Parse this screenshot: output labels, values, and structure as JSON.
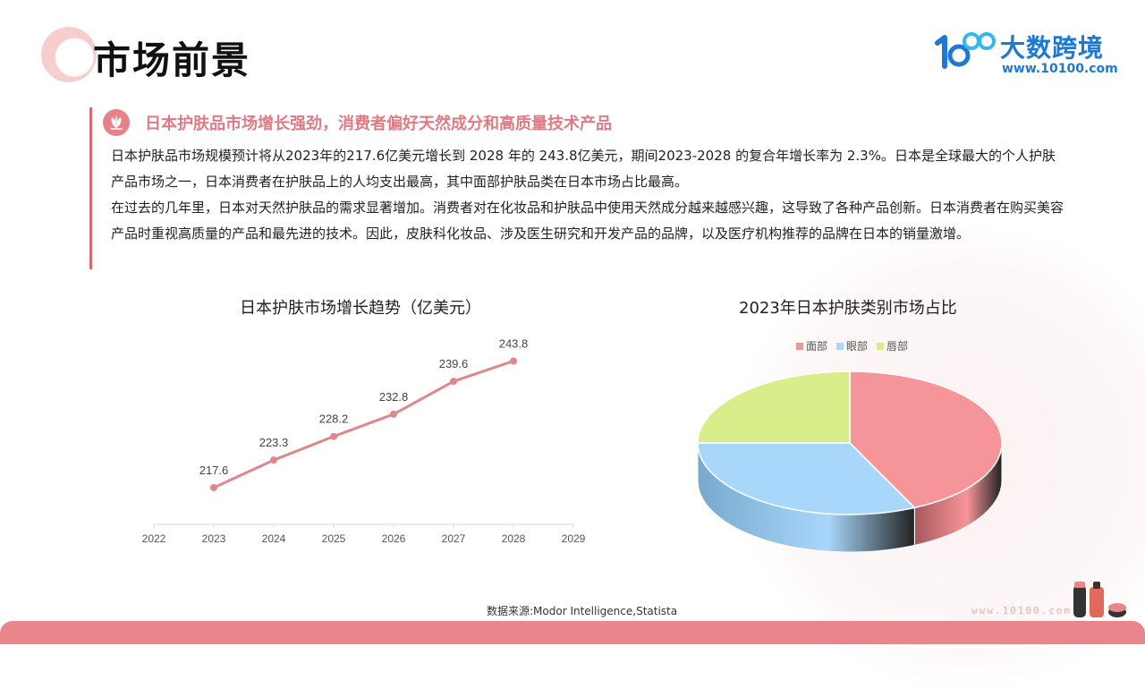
{
  "header": {
    "title": "市场前景",
    "logo": {
      "name": "大数跨境",
      "url": "www.10100.com",
      "mark": "100"
    }
  },
  "intro": {
    "heading": "日本护肤品市场增长强劲，消费者偏好天然成分和高质量技术产品",
    "paragraphs": [
      "日本护肤品市场规模预计将从2023年的217.6亿美元增长到 2028 年的 243.8亿美元，期间2023-2028 的复合年增长率为 2.3%。日本是全球最大的个人护肤产品市场之一，日本消费者在护肤品上的人均支出最高，其中面部护肤品类在日本市场占比最高。",
      "在过去的几年里，日本对天然护肤品的需求显著增加。消费者对在化妆品和护肤品中使用天然成分越来越感兴趣，这导致了各种产品创新。日本消费者在购买美容产品时重视高质量的产品和最先进的技术。因此，皮肤科化妆品、涉及医生研究和开发产品的品牌，以及医疗机构推荐的品牌在日本的销量激增。"
    ],
    "icon": "lotus-icon"
  },
  "colors": {
    "accent": "#e07b84",
    "line": "#e0868d",
    "pie_face": "#f69599",
    "pie_eye": "#a8d7fb",
    "pie_lip": "#d9ee8a"
  },
  "chart_data": [
    {
      "type": "line",
      "title": "日本护肤市场增长趋势（亿美元）",
      "x": [
        "2022",
        "2023",
        "2024",
        "2025",
        "2026",
        "2027",
        "2028",
        "2029"
      ],
      "series": [
        {
          "x": [
            "2023",
            "2024",
            "2025",
            "2026",
            "2027",
            "2028"
          ],
          "values": [
            217.6,
            223.3,
            228.2,
            232.8,
            239.6,
            243.8
          ]
        }
      ],
      "data_labels": [
        "217.6",
        "223.3",
        "228.2",
        "232.8",
        "239.6",
        "243.8"
      ],
      "grid": false
    },
    {
      "type": "pie",
      "title": "2023年日本护肤类别市场占比",
      "labels": [
        "面部",
        "眼部",
        "唇部"
      ],
      "values": [
        43,
        32,
        25
      ],
      "style": "3d",
      "legend": "top"
    }
  ],
  "footer": {
    "source": "数据来源:Modor Intelligence,Statista",
    "watermark": "www.10100.com"
  }
}
